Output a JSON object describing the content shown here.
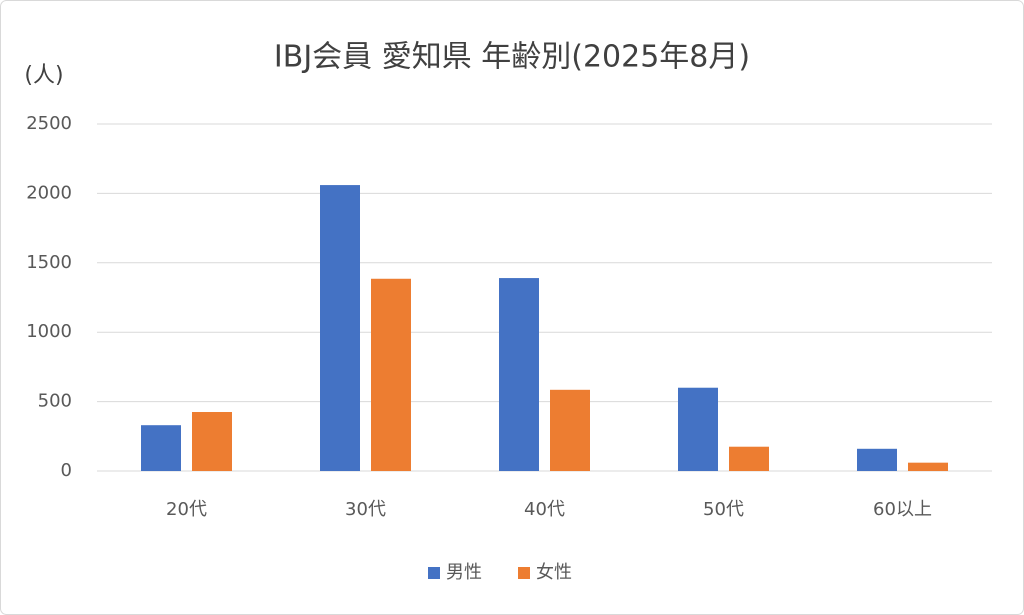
{
  "chart_data": {
    "type": "bar",
    "title": "IBJ会員 愛知県 年齢別(2025年8月)",
    "y_label": "(人)",
    "categories": [
      "20代",
      "30代",
      "40代",
      "50代",
      "60以上"
    ],
    "series": [
      {
        "name": "男性",
        "color": "#4472c4",
        "values": [
          330,
          2060,
          1390,
          600,
          160
        ]
      },
      {
        "name": "女性",
        "color": "#ed7d31",
        "values": [
          425,
          1385,
          585,
          175,
          60
        ]
      }
    ],
    "ylim": [
      0,
      2500
    ],
    "yticks": [
      0,
      500,
      1000,
      1500,
      2000,
      2500
    ],
    "grid": true,
    "legend": "bottom"
  }
}
